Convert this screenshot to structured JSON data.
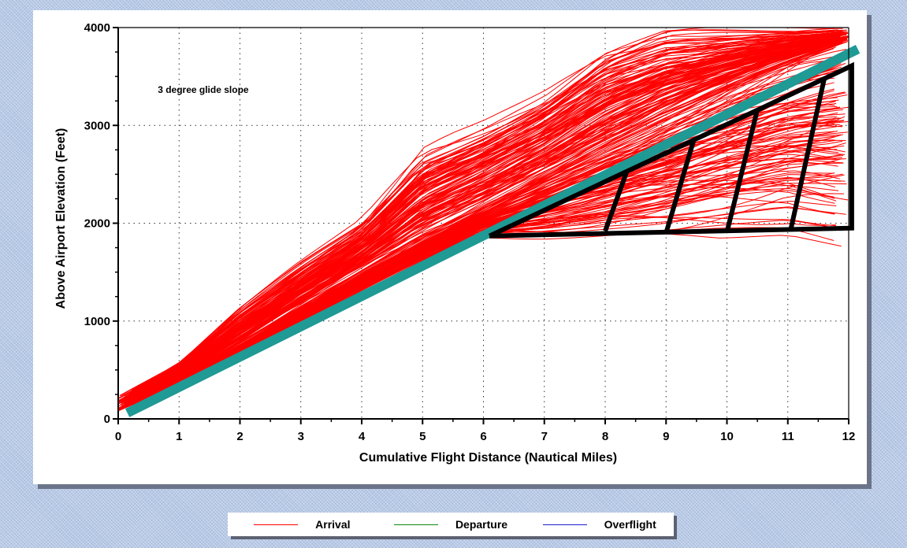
{
  "chart_data": {
    "type": "line",
    "title": "",
    "xlabel": "Cumulative Flight Distance (Nautical Miles)",
    "ylabel": "Above Airport Elevation (Feet)",
    "xlim": [
      0,
      12
    ],
    "ylim": [
      0,
      4000
    ],
    "x_ticks": [
      "0",
      "1",
      "2",
      "3",
      "4",
      "5",
      "6",
      "7",
      "8",
      "9",
      "10",
      "11",
      "12"
    ],
    "y_ticks": [
      "0",
      "1000",
      "2000",
      "3000",
      "4000"
    ],
    "grid": true,
    "legend_position": "bottom",
    "annotations": [
      {
        "text": "3 degree glide slope",
        "x": 0.65,
        "y": 3330
      }
    ],
    "glide_slope": {
      "name": "3 degree glide slope",
      "color": "#1f9a95",
      "x": [
        0.15,
        12.15
      ],
      "y": [
        60,
        3780
      ]
    },
    "highlight_region": {
      "color": "#000000",
      "outline": [
        {
          "x": 6.1,
          "y": 1870
        },
        {
          "x": 12.05,
          "y": 1950
        },
        {
          "x": 12.05,
          "y": 3610
        },
        {
          "x": 6.1,
          "y": 1870
        }
      ],
      "dividers": [
        {
          "x1": 8.0,
          "y1": 1920,
          "x2": 8.35,
          "y2": 2520
        },
        {
          "x1": 9.0,
          "y1": 1900,
          "x2": 9.45,
          "y2": 2840
        },
        {
          "x1": 10.0,
          "y1": 1910,
          "x2": 10.5,
          "y2": 3160
        },
        {
          "x1": 11.05,
          "y1": 1940,
          "x2": 11.6,
          "y2": 3480
        }
      ]
    },
    "series": [
      {
        "name": "Arrival",
        "color": "#ff0000",
        "x": [
          0,
          1,
          2,
          3,
          4,
          5,
          6,
          7,
          8,
          9,
          10,
          11,
          12
        ],
        "y_band_low": [
          80,
          350,
          640,
          950,
          1280,
          1600,
          1850,
          1820,
          1820,
          1820,
          1850,
          1880,
          1750
        ],
        "y_typical": [
          110,
          420,
          760,
          1120,
          1480,
          1810,
          2130,
          2460,
          2780,
          3080,
          3370,
          3640,
          3860
        ],
        "y_band_high": [
          230,
          580,
          1150,
          1620,
          2050,
          2800,
          3050,
          3350,
          3800,
          4000,
          4000,
          4000,
          4000
        ]
      },
      {
        "name": "Departure",
        "color": "#0b8a0b",
        "x": [],
        "y": []
      },
      {
        "name": "Overflight",
        "color": "#1c1cd0",
        "x": [],
        "y": []
      }
    ]
  }
}
